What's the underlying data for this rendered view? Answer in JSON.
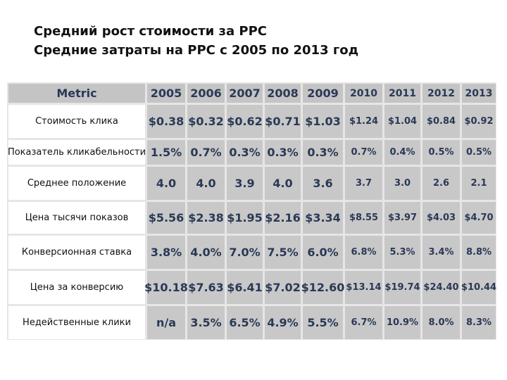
{
  "header": {
    "title_line1": "Средний рост стоимости за PPC",
    "title_line2": "Средние затраты на PPC с 2005 по 2013 год"
  },
  "table": {
    "columns": [
      "Metric",
      "2005",
      "2006",
      "2007",
      "2008",
      "2009",
      "2010",
      "2011",
      "2012",
      "2013"
    ],
    "rows": [
      [
        "Стоимость клика",
        "$0.38",
        "$0.32",
        "$0.62",
        "$0.71",
        "$1.03",
        "$1.24",
        "$1.04",
        "$0.84",
        "$0.92"
      ],
      [
        "Показатель кликабельности",
        "1.5%",
        "0.7%",
        "0.3%",
        "0.3%",
        "0.3%",
        "0.7%",
        "0.4%",
        "0.5%",
        "0.5%"
      ],
      [
        "Среднее положение",
        "4.0",
        "4.0",
        "3.9",
        "4.0",
        "3.6",
        "3.7",
        "3.0",
        "2.6",
        "2.1"
      ],
      [
        "Цена тысячи показов",
        "$5.56",
        "$2.38",
        "$1.95",
        "$2.16",
        "$3.34",
        "$8.55",
        "$3.97",
        "$4.03",
        "$4.70"
      ],
      [
        "Конверсионная ставка",
        "3.8%",
        "4.0%",
        "7.0%",
        "7.5%",
        "6.0%",
        "6.8%",
        "5.3%",
        "3.4%",
        "8.8%"
      ],
      [
        "Цена за конверсию",
        "$10.18",
        "$7.63",
        "$6.41",
        "$7.02",
        "$12.60",
        "$13.14",
        "$19.74",
        "$24.40",
        "$10.44"
      ],
      [
        "Недейственные клики",
        "n/a",
        "3.5%",
        "6.5%",
        "4.9%",
        "5.5%",
        "6.7%",
        "10.9%",
        "8.0%",
        "8.3%"
      ]
    ]
  }
}
